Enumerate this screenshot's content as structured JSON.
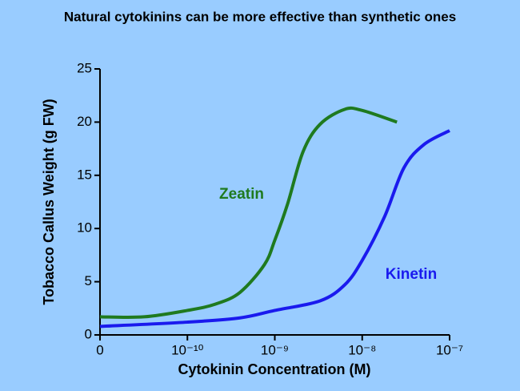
{
  "chart_data": {
    "type": "line",
    "title": "Natural cytokinins can be more effective than synthetic ones",
    "x_label": "Cytokinin Concentration (M)",
    "y_label": "Tobacco Callus Weight (g FW)",
    "x_scale": "log",
    "xlim": [
      1e-11,
      1e-07
    ],
    "xticks": [
      {
        "value": 1e-11,
        "label": "0"
      },
      {
        "value": 1e-10,
        "label": "10⁻¹⁰"
      },
      {
        "value": 1e-09,
        "label": "10⁻⁹"
      },
      {
        "value": 1e-08,
        "label": "10⁻⁸"
      },
      {
        "value": 1e-07,
        "label": "10⁻⁷"
      }
    ],
    "ylim": [
      0,
      25
    ],
    "yticks": [
      0,
      5,
      10,
      15,
      20,
      25
    ],
    "grid": false,
    "series": [
      {
        "name": "Zeatin",
        "color": "#1f7a1f",
        "x": [
          1e-11,
          3.2e-11,
          1e-10,
          2.1e-10,
          4e-10,
          7.6e-10,
          1e-09,
          1.4e-09,
          2.1e-09,
          3.3e-09,
          6.3e-09,
          1e-08,
          2.5e-08
        ],
        "values": [
          1.7,
          1.7,
          2.3,
          2.9,
          4.0,
          6.6,
          8.9,
          12.3,
          17.2,
          19.8,
          21.2,
          21.1,
          20.0
        ]
      },
      {
        "name": "Kinetin",
        "color": "#1a1aee",
        "x": [
          1e-11,
          1e-10,
          4e-10,
          1e-09,
          3.3e-09,
          6.3e-09,
          1e-08,
          1.8e-08,
          3e-08,
          5.1e-08,
          1e-07
        ],
        "values": [
          0.8,
          1.2,
          1.6,
          2.3,
          3.2,
          4.7,
          7.0,
          11.1,
          15.7,
          17.9,
          19.2
        ]
      }
    ]
  }
}
